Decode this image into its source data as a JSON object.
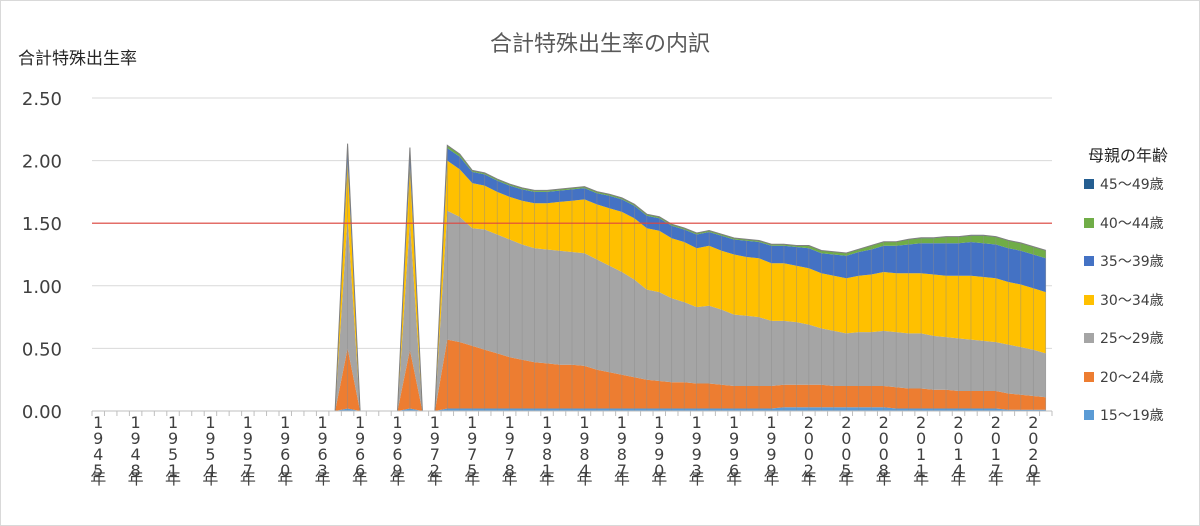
{
  "chart_data": {
    "type": "area",
    "title": "合計特殊出生率の内訳",
    "ylabel": "合計特殊出生率",
    "xlabel": "",
    "ylim": [
      0,
      2.5
    ],
    "yticks": [
      "0.00",
      "0.50",
      "1.00",
      "1.50",
      "2.00",
      "2.50"
    ],
    "x_tick_labels": [
      "1945年",
      "1948年",
      "1951年",
      "1954年",
      "1957年",
      "1960年",
      "1963年",
      "1966年",
      "1969年",
      "1972年",
      "1975年",
      "1978年",
      "1981年",
      "1984年",
      "1987年",
      "1990年",
      "1993年",
      "1996年",
      "1999年",
      "2002年",
      "2005年",
      "2008年",
      "2011年",
      "2014年",
      "2017年",
      "2020年"
    ],
    "x": [
      "1945年",
      "1946年",
      "1947年",
      "1948年",
      "1949年",
      "1950年",
      "1951年",
      "1952年",
      "1953年",
      "1954年",
      "1955年",
      "1956年",
      "1957年",
      "1958年",
      "1959年",
      "1960年",
      "1961年",
      "1962年",
      "1963年",
      "1964年",
      "1965年",
      "1966年",
      "1967年",
      "1968年",
      "1969年",
      "1970年",
      "1971年",
      "1972年",
      "1973年",
      "1974年",
      "1975年",
      "1976年",
      "1977年",
      "1978年",
      "1979年",
      "1980年",
      "1981年",
      "1982年",
      "1983年",
      "1984年",
      "1985年",
      "1986年",
      "1987年",
      "1988年",
      "1989年",
      "1990年",
      "1991年",
      "1992年",
      "1993年",
      "1994年",
      "1995年",
      "1996年",
      "1997年",
      "1998年",
      "1999年",
      "2000年",
      "2001年",
      "2002年",
      "2003年",
      "2004年",
      "2005年",
      "2006年",
      "2007年",
      "2008年",
      "2009年",
      "2010年",
      "2011年",
      "2012年",
      "2013年",
      "2014年",
      "2015年",
      "2016年",
      "2017年",
      "2018年",
      "2019年",
      "2020年",
      "2021年"
    ],
    "reference_line": {
      "value": 1.5,
      "color": "#e0453c"
    },
    "legend_title": "母親の年齢",
    "legend_position": "right",
    "series": [
      {
        "name": "15〜19歳",
        "color": "#5b9bd5",
        "values": [
          0,
          0,
          0,
          0,
          0,
          0,
          0,
          0,
          0,
          0,
          0,
          0,
          0,
          0,
          0,
          0,
          0,
          0,
          0,
          0,
          0.02,
          0,
          0,
          0,
          0,
          0.02,
          0,
          0,
          0.02,
          0.02,
          0.02,
          0.02,
          0.02,
          0.02,
          0.02,
          0.02,
          0.02,
          0.02,
          0.02,
          0.02,
          0.02,
          0.02,
          0.02,
          0.02,
          0.02,
          0.02,
          0.02,
          0.02,
          0.02,
          0.02,
          0.02,
          0.02,
          0.02,
          0.02,
          0.02,
          0.03,
          0.03,
          0.03,
          0.03,
          0.03,
          0.03,
          0.03,
          0.03,
          0.03,
          0.02,
          0.02,
          0.02,
          0.02,
          0.02,
          0.02,
          0.02,
          0.02,
          0.02,
          0.01,
          0.01,
          0.01,
          0.01
        ]
      },
      {
        "name": "20〜24歳",
        "color": "#ed7d31",
        "values": [
          0,
          0,
          0,
          0,
          0,
          0,
          0,
          0,
          0,
          0,
          0,
          0,
          0,
          0,
          0,
          0,
          0,
          0,
          0,
          0,
          0.48,
          0,
          0,
          0,
          0,
          0.47,
          0,
          0,
          0.55,
          0.53,
          0.5,
          0.47,
          0.44,
          0.41,
          0.39,
          0.37,
          0.36,
          0.35,
          0.35,
          0.34,
          0.31,
          0.29,
          0.27,
          0.25,
          0.23,
          0.22,
          0.21,
          0.21,
          0.2,
          0.2,
          0.19,
          0.18,
          0.18,
          0.18,
          0.18,
          0.18,
          0.18,
          0.18,
          0.18,
          0.17,
          0.17,
          0.17,
          0.17,
          0.17,
          0.17,
          0.16,
          0.16,
          0.15,
          0.15,
          0.14,
          0.14,
          0.14,
          0.14,
          0.13,
          0.12,
          0.11,
          0.1
        ]
      },
      {
        "name": "25〜29歳",
        "color": "#a5a5a5",
        "values": [
          0,
          0,
          0,
          0,
          0,
          0,
          0,
          0,
          0,
          0,
          0,
          0,
          0,
          0,
          0,
          0,
          0,
          0,
          0,
          0,
          1.05,
          0,
          0,
          0,
          0,
          1.03,
          0,
          0,
          1.03,
          1.0,
          0.94,
          0.96,
          0.95,
          0.94,
          0.92,
          0.91,
          0.91,
          0.91,
          0.9,
          0.9,
          0.88,
          0.85,
          0.82,
          0.78,
          0.72,
          0.71,
          0.67,
          0.64,
          0.61,
          0.62,
          0.6,
          0.57,
          0.56,
          0.55,
          0.52,
          0.51,
          0.5,
          0.48,
          0.45,
          0.44,
          0.42,
          0.43,
          0.43,
          0.44,
          0.44,
          0.44,
          0.44,
          0.43,
          0.42,
          0.42,
          0.41,
          0.4,
          0.39,
          0.39,
          0.38,
          0.37,
          0.35
        ]
      },
      {
        "name": "30〜34歳",
        "color": "#ffc000",
        "values": [
          0,
          0,
          0,
          0,
          0,
          0,
          0,
          0,
          0,
          0,
          0,
          0,
          0,
          0,
          0,
          0,
          0,
          0,
          0,
          0,
          0.44,
          0,
          0,
          0,
          0,
          0.44,
          0,
          0,
          0.4,
          0.38,
          0.36,
          0.35,
          0.34,
          0.34,
          0.35,
          0.36,
          0.37,
          0.39,
          0.41,
          0.43,
          0.44,
          0.46,
          0.48,
          0.49,
          0.49,
          0.49,
          0.48,
          0.48,
          0.47,
          0.48,
          0.47,
          0.48,
          0.47,
          0.47,
          0.46,
          0.46,
          0.45,
          0.45,
          0.44,
          0.44,
          0.44,
          0.45,
          0.46,
          0.47,
          0.47,
          0.48,
          0.48,
          0.49,
          0.49,
          0.5,
          0.51,
          0.51,
          0.51,
          0.5,
          0.5,
          0.49,
          0.49
        ]
      },
      {
        "name": "35〜39歳",
        "color": "#4472c4",
        "values": [
          0,
          0,
          0,
          0,
          0,
          0,
          0,
          0,
          0,
          0,
          0,
          0,
          0,
          0,
          0,
          0,
          0,
          0,
          0,
          0,
          0.12,
          0,
          0,
          0,
          0,
          0.12,
          0,
          0,
          0.1,
          0.1,
          0.09,
          0.09,
          0.09,
          0.09,
          0.09,
          0.09,
          0.09,
          0.09,
          0.09,
          0.09,
          0.09,
          0.1,
          0.1,
          0.1,
          0.1,
          0.1,
          0.1,
          0.1,
          0.11,
          0.11,
          0.12,
          0.12,
          0.13,
          0.13,
          0.14,
          0.14,
          0.15,
          0.16,
          0.16,
          0.17,
          0.18,
          0.19,
          0.2,
          0.21,
          0.22,
          0.23,
          0.24,
          0.25,
          0.26,
          0.26,
          0.27,
          0.27,
          0.27,
          0.27,
          0.27,
          0.27,
          0.27
        ]
      },
      {
        "name": "40〜44歳",
        "color": "#70ad47",
        "values": [
          0,
          0,
          0,
          0,
          0,
          0,
          0,
          0,
          0,
          0,
          0,
          0,
          0,
          0,
          0,
          0,
          0,
          0,
          0,
          0,
          0.02,
          0,
          0,
          0,
          0,
          0.02,
          0,
          0,
          0.02,
          0.02,
          0.01,
          0.01,
          0.01,
          0.01,
          0.01,
          0.01,
          0.01,
          0.01,
          0.01,
          0.01,
          0.01,
          0.01,
          0.01,
          0.01,
          0.01,
          0.01,
          0.01,
          0.01,
          0.01,
          0.01,
          0.01,
          0.01,
          0.01,
          0.01,
          0.01,
          0.01,
          0.01,
          0.02,
          0.02,
          0.02,
          0.02,
          0.02,
          0.03,
          0.03,
          0.03,
          0.04,
          0.04,
          0.04,
          0.05,
          0.05,
          0.05,
          0.06,
          0.06,
          0.06,
          0.06,
          0.06,
          0.06
        ]
      },
      {
        "name": "45〜49歳",
        "color": "#255e91",
        "values": [
          0,
          0,
          0,
          0,
          0,
          0,
          0,
          0,
          0,
          0,
          0,
          0,
          0,
          0,
          0,
          0,
          0,
          0,
          0,
          0,
          0.005,
          0,
          0,
          0,
          0,
          0.005,
          0,
          0,
          0.002,
          0.002,
          0.002,
          0.002,
          0.002,
          0.002,
          0.002,
          0.002,
          0.002,
          0.002,
          0.002,
          0.002,
          0.002,
          0.002,
          0.002,
          0.002,
          0.002,
          0.002,
          0.002,
          0.002,
          0.002,
          0.002,
          0.002,
          0.002,
          0.002,
          0.002,
          0.002,
          0.002,
          0.002,
          0.002,
          0.002,
          0.002,
          0.002,
          0.002,
          0.002,
          0.002,
          0.002,
          0.002,
          0.003,
          0.003,
          0.003,
          0.003,
          0.003,
          0.003,
          0.003,
          0.003,
          0.003,
          0.003,
          0.003
        ]
      }
    ]
  }
}
